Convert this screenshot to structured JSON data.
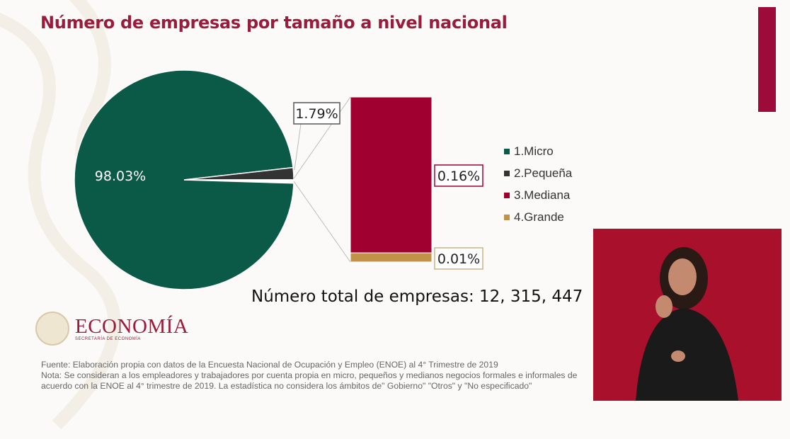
{
  "header": {
    "title": "Número de empresas por tamaño a nivel nacional"
  },
  "chart_data": {
    "type": "pie",
    "subtype": "pie-of-bar",
    "title": "Número de empresas por tamaño a nivel nacional",
    "categories": [
      "1.Micro",
      "2.Pequeña",
      "3.Mediana",
      "4.Grande"
    ],
    "values": [
      98.03,
      1.79,
      0.16,
      0.01
    ],
    "labels": [
      "98.03%",
      "1.79%",
      "0.16%",
      "0.01%"
    ],
    "colors": [
      "#0b5a47",
      "#333333",
      "#a0002f",
      "#c0924a"
    ],
    "legend_position": "right"
  },
  "total": {
    "text": "Número total de empresas: 12, 315, 447"
  },
  "logo": {
    "name": "ECONOMÍA",
    "subtitle": "SECRETARÍA DE ECONOMÍA"
  },
  "notes": [
    "Fuente: Elaboración propia con datos de la Encuesta Nacional de Ocupación y Empleo (ENOE) al 4° Trimestre de 2019",
    "Nota: Se consideran a los empleadores y trabajadores por cuenta propia en micro, pequeños y medianos negocios formales e informales de acuerdo con la ENOE al 4° trimestre de 2019. La estadística no considera los ámbitos de\" Gobierno\" \"Otros\" y \"No especificado\""
  ]
}
